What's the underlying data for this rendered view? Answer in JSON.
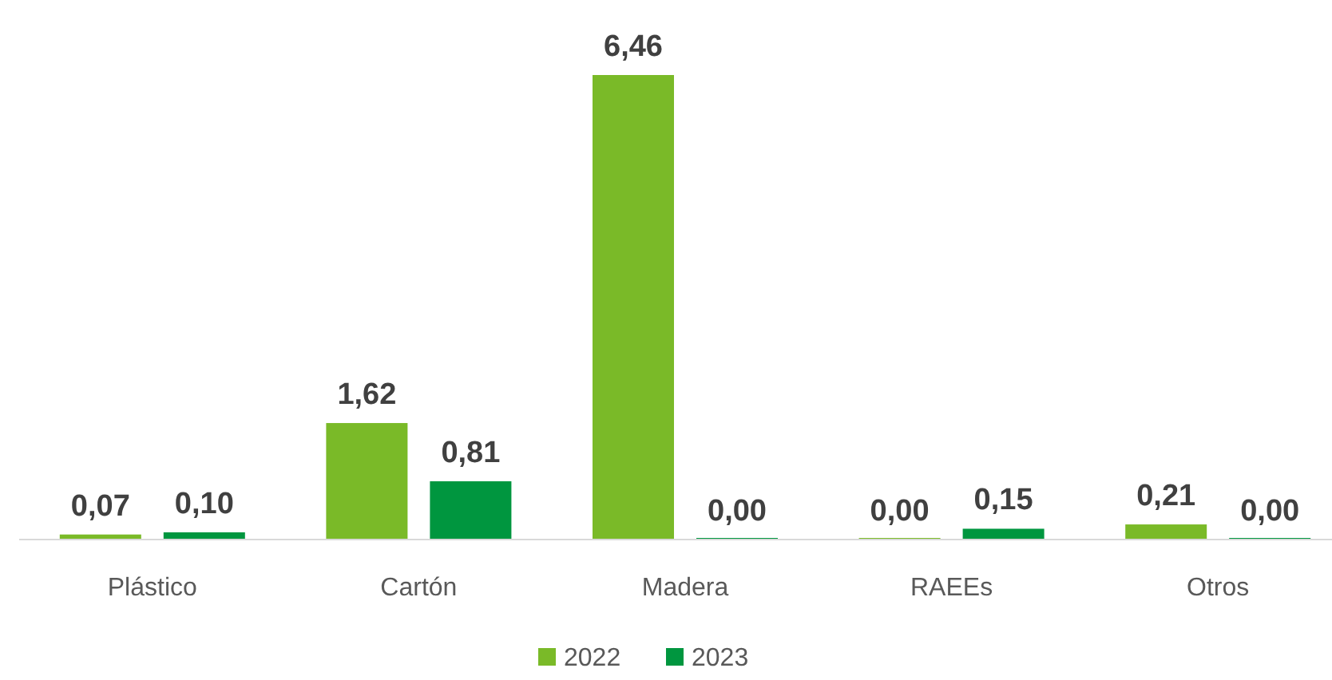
{
  "chart_data": {
    "type": "bar",
    "categories": [
      "Plástico",
      "Cartón",
      "Madera",
      "RAEEs",
      "Otros"
    ],
    "series": [
      {
        "name": "2022",
        "color": "#7aba28",
        "values": [
          0.07,
          1.62,
          6.46,
          0,
          0.21
        ],
        "value_labels": [
          "0,07",
          "1,62",
          "6,46",
          "0,00",
          "0,21"
        ]
      },
      {
        "name": "2023",
        "color": "#00963f",
        "values": [
          0.1,
          0.81,
          0,
          0.15,
          0
        ],
        "value_labels": [
          "0,10",
          "0,81",
          "0,00",
          "0,15",
          "0,00"
        ]
      }
    ],
    "legend": "bottom"
  }
}
